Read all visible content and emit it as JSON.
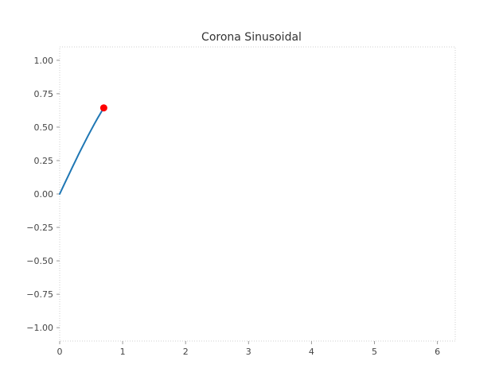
{
  "chart_data": {
    "type": "line",
    "title": "Corona Sinusoidal",
    "xlabel": "",
    "ylabel": "",
    "xlim": [
      0,
      6.283
    ],
    "ylim": [
      -1.1,
      1.1
    ],
    "x_ticks": [
      0,
      1,
      2,
      3,
      4,
      5,
      6
    ],
    "x_tick_labels": [
      "0",
      "1",
      "2",
      "3",
      "4",
      "5",
      "6"
    ],
    "y_ticks": [
      1.0,
      0.75,
      0.5,
      0.25,
      0.0,
      -0.25,
      -0.5,
      -0.75,
      -1.0
    ],
    "y_tick_labels": [
      "1.00",
      "0.75",
      "0.50",
      "0.25",
      "0.00",
      "−0.25",
      "−0.50",
      "−0.75",
      "−1.00"
    ],
    "grid": false,
    "series": [
      {
        "color": "#1f77b4",
        "x": [
          0.0,
          0.05,
          0.1,
          0.15,
          0.2,
          0.25,
          0.3,
          0.35,
          0.4,
          0.45,
          0.5,
          0.55,
          0.6,
          0.65,
          0.7
        ],
        "y": [
          0.0,
          0.05,
          0.1,
          0.149,
          0.199,
          0.247,
          0.296,
          0.343,
          0.389,
          0.435,
          0.479,
          0.523,
          0.565,
          0.605,
          0.644
        ]
      }
    ],
    "marker": {
      "x": 0.7,
      "y": 0.644,
      "color": "#ff0000"
    }
  }
}
